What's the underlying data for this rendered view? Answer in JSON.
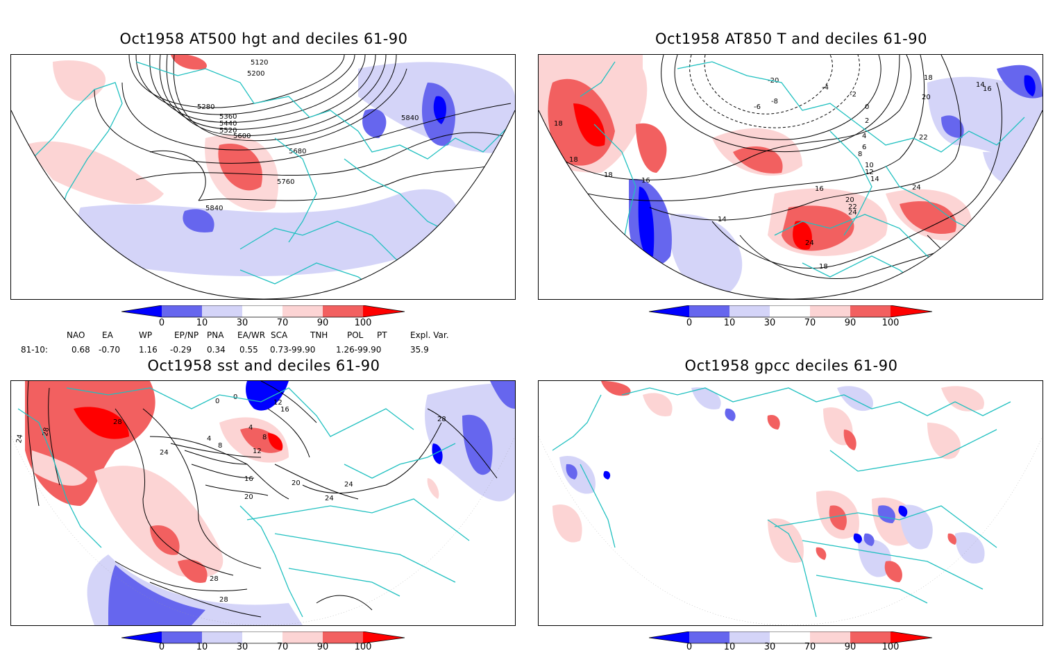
{
  "panels": [
    {
      "title": "Oct1958 AT500 hgt and deciles 61-90",
      "contour_labels": [
        "5120",
        "5200",
        "5280",
        "5360",
        "5440",
        "5520",
        "5600",
        "5680",
        "5760",
        "5840",
        "5840"
      ]
    },
    {
      "title": "Oct1958 AT850 T and deciles 61-90",
      "contour_labels": [
        "-20",
        "-8",
        "-6",
        "-4",
        "-2",
        "0",
        "2",
        "4",
        "6",
        "8",
        "10",
        "12",
        "14",
        "14",
        "16",
        "16",
        "18",
        "18",
        "18",
        "20",
        "22",
        "24",
        "24",
        "18",
        "14",
        "16",
        "18",
        "20",
        "22",
        "24"
      ]
    },
    {
      "title": "Oct1958 sst and deciles 61-90",
      "contour_labels": [
        "24",
        "28",
        "28",
        "0",
        "0",
        "4",
        "8",
        "12",
        "16",
        "20",
        "24",
        "28",
        "28",
        "4",
        "8",
        "12",
        "16",
        "20",
        "24",
        "24",
        "28"
      ]
    },
    {
      "title": "Oct1958 gpcc deciles 61-90",
      "contour_labels": []
    }
  ],
  "colorbar": {
    "ticks": [
      "0",
      "10",
      "30",
      "70",
      "90",
      "100"
    ],
    "colors": [
      "#0000ff",
      "#6666ee",
      "#d4d4f8",
      "#ffffff",
      "#fcd4d4",
      "#f26060",
      "#ff0000"
    ]
  },
  "indices": {
    "headers": [
      "NAO",
      "EA",
      "WP",
      "EP/NP",
      "PNA",
      "EA/WR",
      "SCA",
      "TNH",
      "POL",
      "PT",
      "Expl. Var."
    ],
    "row_label": "81-10:",
    "values": [
      "0.68",
      "-0.70",
      "1.16",
      "-0.29",
      "0.34",
      "0.55",
      "0.73-99.90",
      "1.26-99.90",
      "35.9"
    ]
  }
}
